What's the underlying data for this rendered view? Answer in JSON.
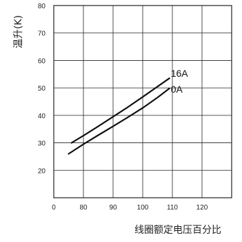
{
  "chart_data": {
    "type": "line",
    "xlabel": "线圈额定电压百分比",
    "ylabel": "温升(K)",
    "x_ticks": [
      "0",
      "80",
      "90",
      "100",
      "110",
      "120"
    ],
    "x_tick_values": [
      70,
      80,
      90,
      100,
      110,
      120
    ],
    "y_ticks": [
      "20",
      "30",
      "40",
      "50",
      "60",
      "70",
      "80"
    ],
    "y_tick_values": [
      20,
      30,
      40,
      50,
      60,
      70,
      80
    ],
    "xlim": [
      70,
      130
    ],
    "ylim": [
      10,
      80
    ],
    "grid": true,
    "series": [
      {
        "name": "16A",
        "x": [
          76,
          80,
          85,
          90,
          95,
          100,
          105,
          109
        ],
        "y": [
          30.0,
          32.6,
          36.0,
          39.5,
          43.0,
          46.7,
          50.5,
          53.5
        ]
      },
      {
        "name": "0A",
        "x": [
          75,
          80,
          85,
          90,
          95,
          100,
          105,
          109
        ],
        "y": [
          26.0,
          29.5,
          32.8,
          36.0,
          39.3,
          42.7,
          46.5,
          49.8
        ]
      }
    ]
  }
}
